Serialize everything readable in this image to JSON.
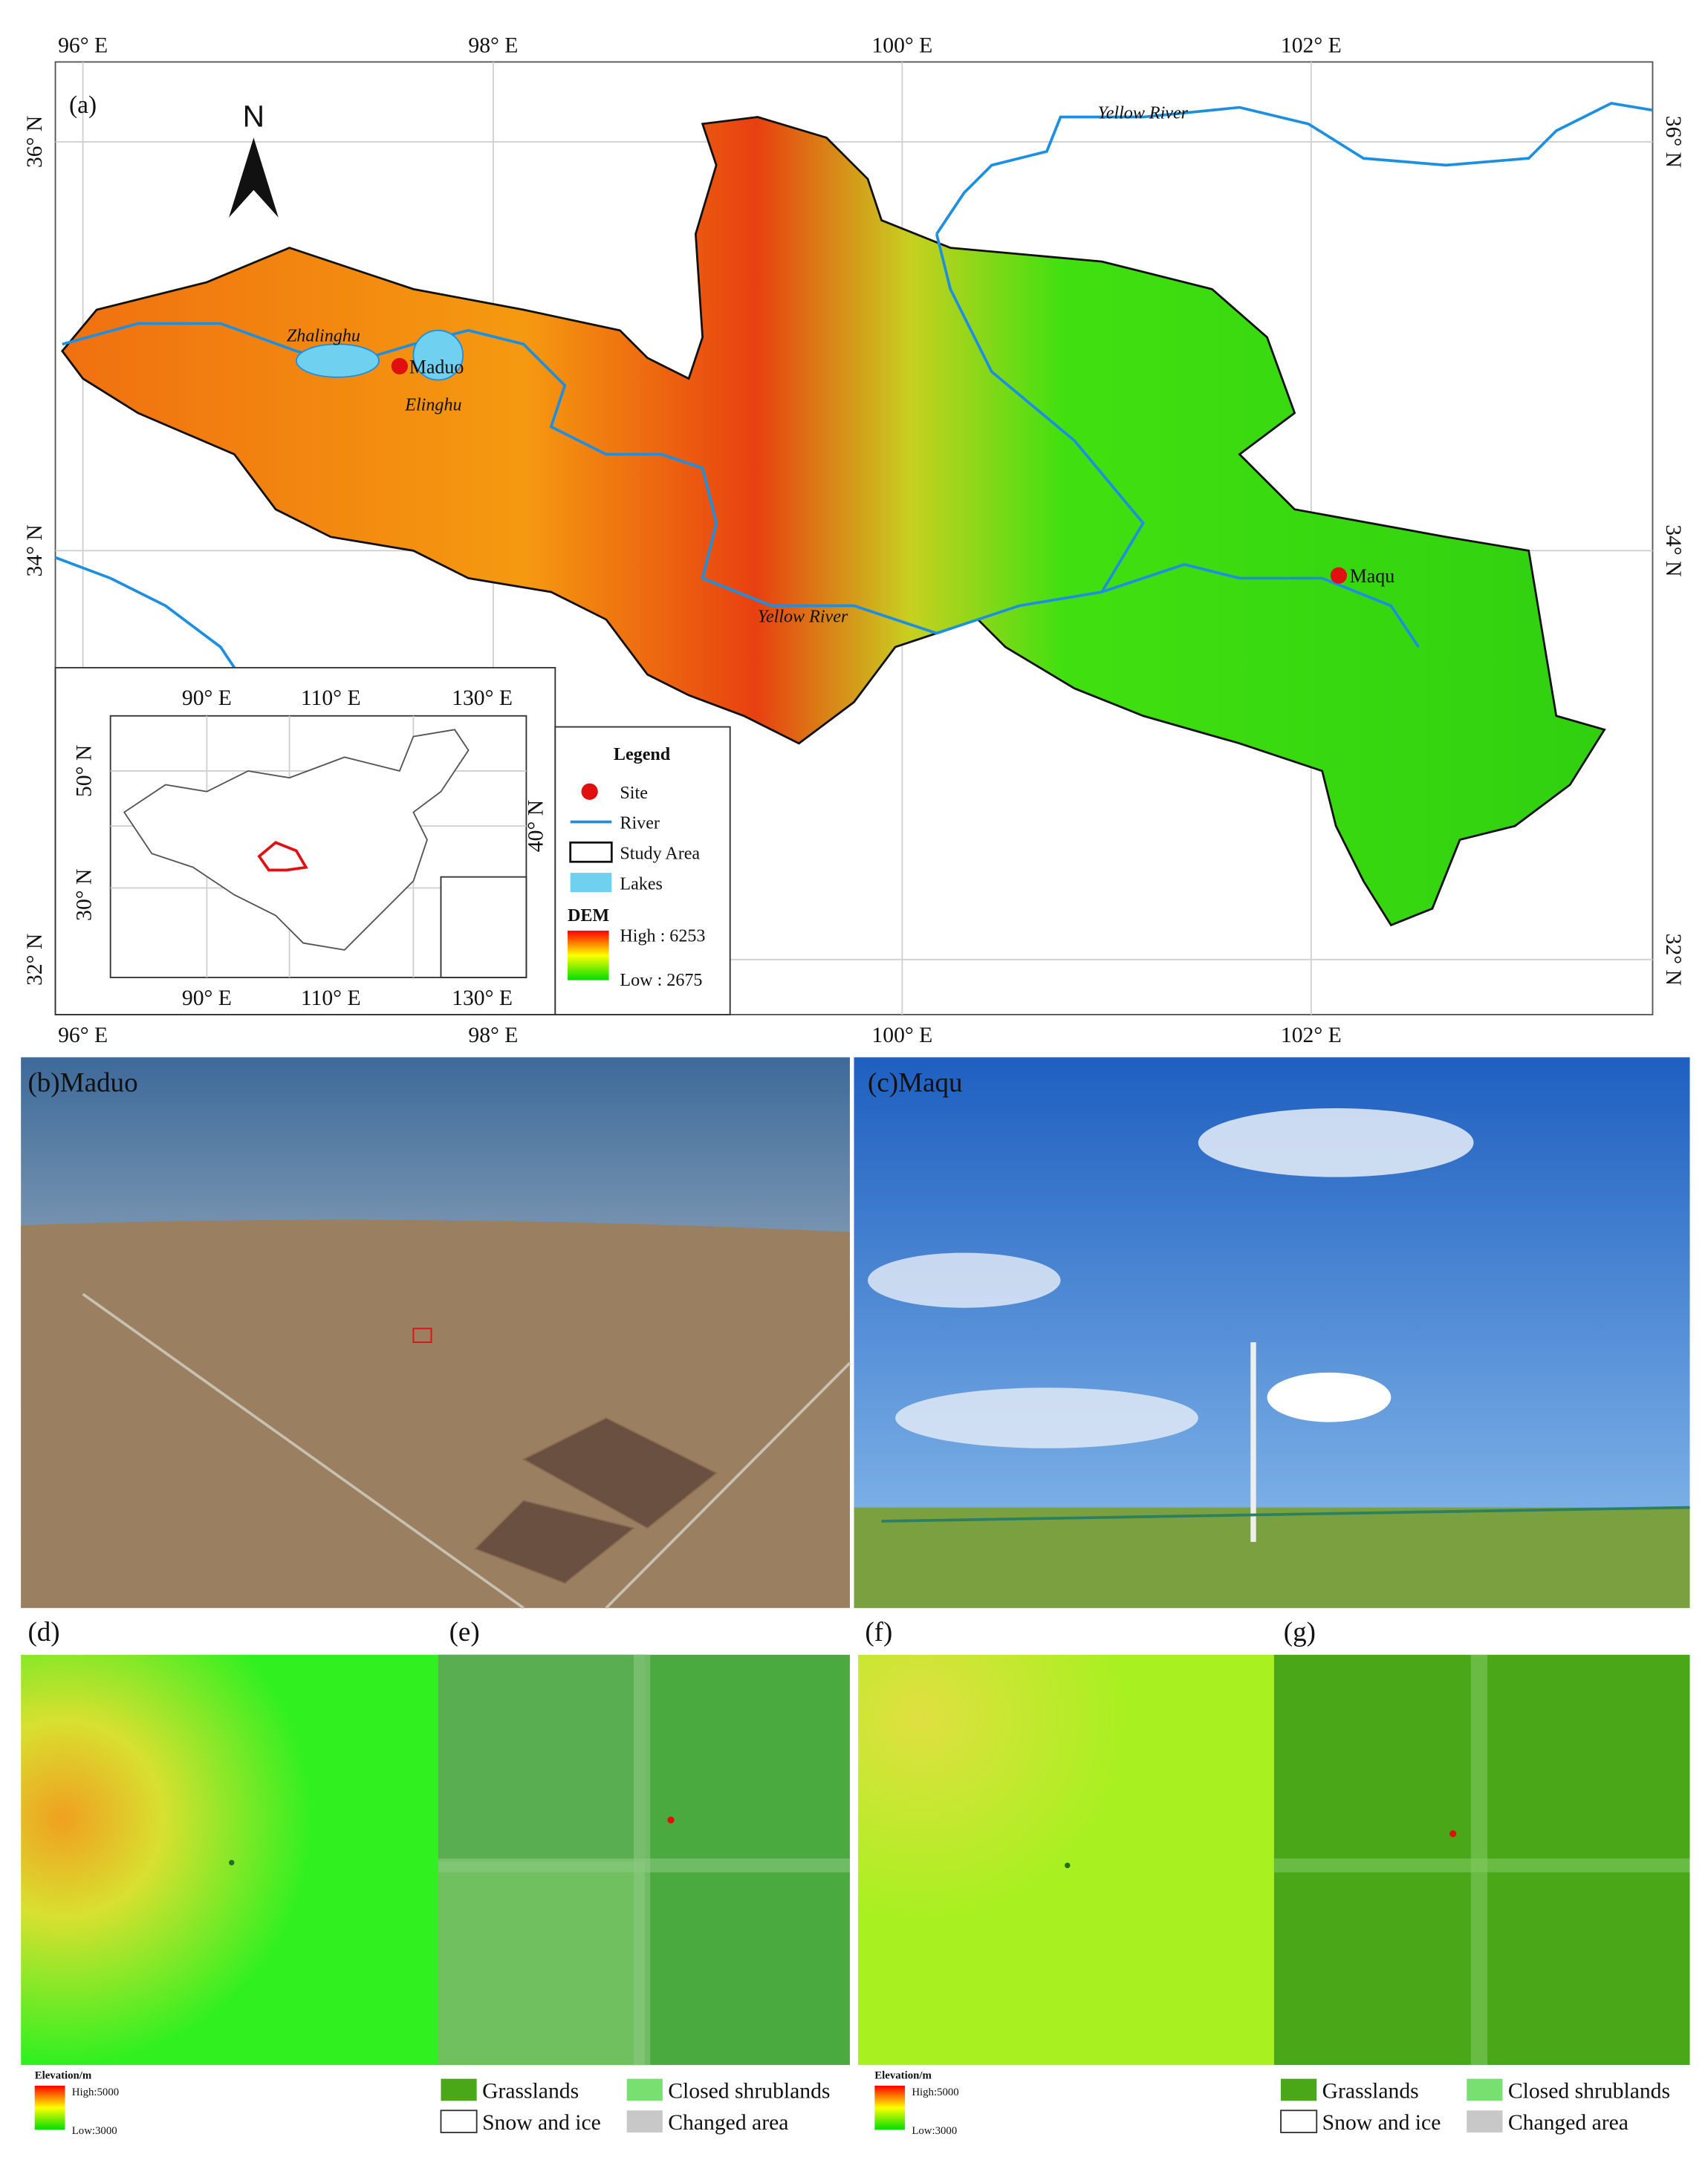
{
  "panel_a": {
    "label": "(a)",
    "lon_labels": [
      "96° E",
      "98° E",
      "100° E",
      "102° E"
    ],
    "lat_labels": [
      "36° N",
      "34° N",
      "32° N"
    ],
    "north": "N",
    "places": [
      "Zhalinghu",
      "Maduo",
      "Elinghu",
      "Maqu"
    ],
    "rivers": [
      "Yellow River",
      "Yellow River"
    ],
    "inset": {
      "lon_labels": [
        "90° E",
        "110° E",
        "130° E"
      ],
      "lat_labels": [
        "50° N",
        "40° N",
        "30° N"
      ]
    },
    "legend": {
      "title": "Legend",
      "items": [
        "Site",
        "River",
        "Study Area",
        "Lakes"
      ],
      "dem": "DEM",
      "high": "High : 6253",
      "low": "Low : 2675"
    }
  },
  "panel_b": "(b)Maduo",
  "panel_c": "(c)Maqu",
  "panels_small": [
    "(d)",
    "(e)",
    "(f)",
    "(g)"
  ],
  "elevation_legend": {
    "title": "Elevation/m",
    "high": "High:5000",
    "low": "Low:3000"
  },
  "landcover_legend": [
    "Grasslands",
    "Closed shrublands",
    "Snow and ice",
    "Changed area"
  ]
}
